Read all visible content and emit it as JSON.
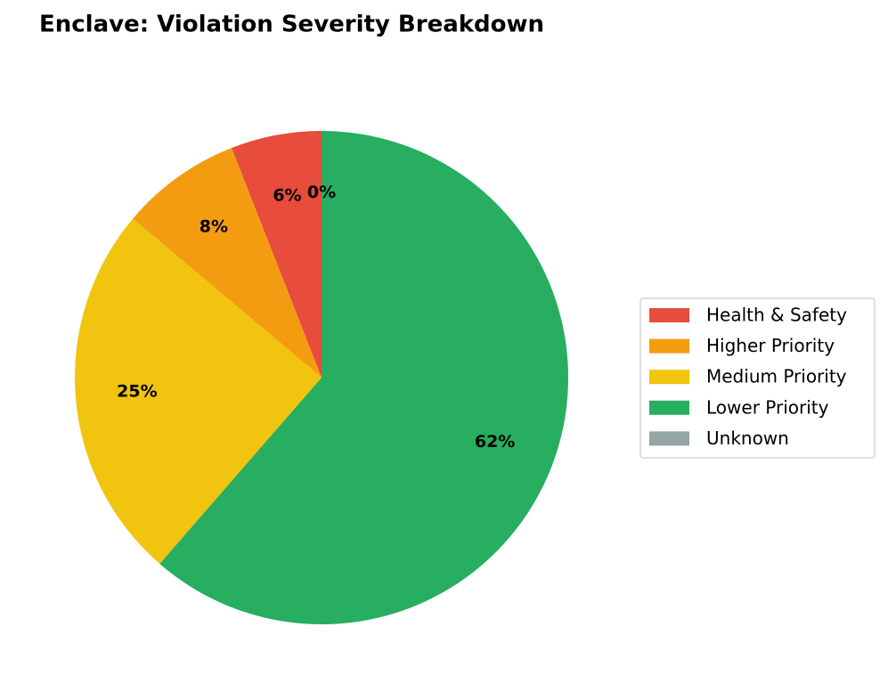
{
  "chart_data": {
    "type": "pie",
    "title": "Enclave: Violation Severity Breakdown",
    "categories": [
      "Health & Safety",
      "Higher Priority",
      "Medium Priority",
      "Lower Priority",
      "Unknown"
    ],
    "values": [
      6,
      8,
      25,
      62,
      0
    ],
    "value_labels": [
      "6%",
      "8%",
      "25%",
      "62%",
      "0%"
    ],
    "colors": [
      "#e74c3c",
      "#f39c12",
      "#f1c40f",
      "#27ae60",
      "#95a5a6"
    ],
    "legend": "right"
  }
}
